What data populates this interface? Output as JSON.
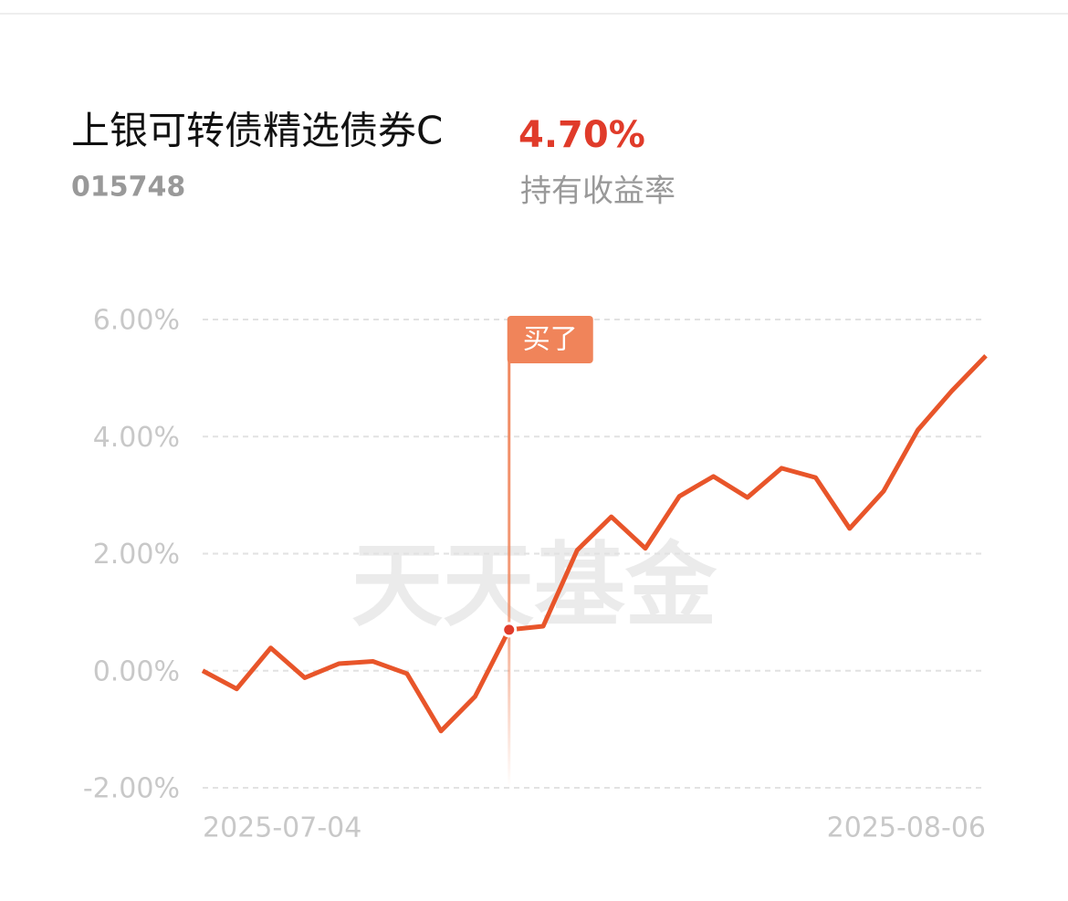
{
  "header": {
    "title": "上银可转债精选债券C",
    "code": "015748",
    "return": "4.70%",
    "return_label": "持有收益率"
  },
  "chart_data": {
    "type": "line",
    "watermark": "天天基金",
    "categories": [
      "2025-07-04",
      null,
      null,
      null,
      null,
      null,
      null,
      null,
      null,
      null,
      null,
      null,
      null,
      null,
      null,
      null,
      null,
      null,
      null,
      null,
      null,
      null,
      null,
      "2025-08-06"
    ],
    "series": [
      {
        "name": "持有收益率",
        "color": "#e8552a",
        "values": [
          0.0,
          -0.31,
          0.39,
          -0.12,
          0.12,
          0.16,
          -0.05,
          -1.03,
          -0.44,
          0.7,
          0.76,
          2.06,
          2.63,
          2.09,
          2.98,
          3.32,
          2.96,
          3.46,
          3.3,
          2.43,
          3.07,
          4.11,
          4.78,
          5.38
        ]
      }
    ],
    "annotations": [
      {
        "text": "买了",
        "x_index": 9,
        "color": "#f0845a"
      }
    ],
    "ylim": [
      -2,
      6
    ],
    "yticks": [
      {
        "value": -2,
        "label": "-2.00%"
      },
      {
        "value": 0,
        "label": "0.00%"
      },
      {
        "value": 2,
        "label": "2.00%"
      },
      {
        "value": 4,
        "label": "4.00%"
      },
      {
        "value": 6,
        "label": "6.00%"
      }
    ],
    "grid": true
  }
}
